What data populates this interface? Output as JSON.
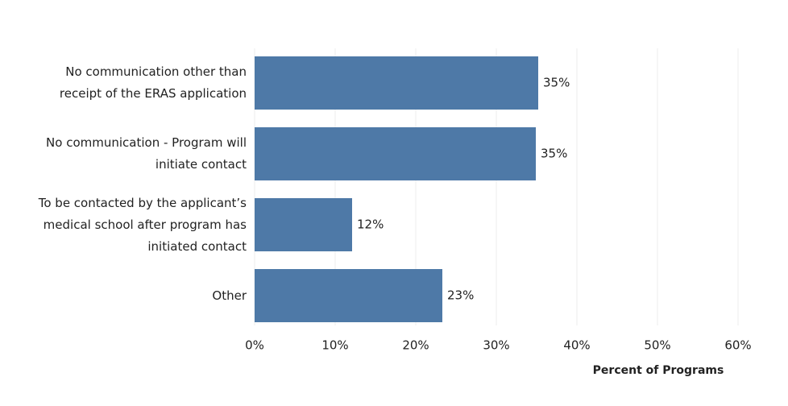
{
  "chart_data": {
    "type": "bar",
    "orientation": "horizontal",
    "categories": [
      "No communication other than\nreceipt of the ERAS application",
      "No communication - Program will\ninitiate contact",
      "To be contacted by the applicant’s\nmedical school after program has\ninitiated contact",
      "Other"
    ],
    "values": [
      35.2,
      34.9,
      12.1,
      23.3
    ],
    "value_labels": [
      "35%",
      "35%",
      "12%",
      "23%"
    ],
    "color": "#4e79a7",
    "xlim": [
      0,
      63
    ],
    "xticks": [
      {
        "value": 0,
        "label": "0%"
      },
      {
        "value": 10,
        "label": "10%"
      },
      {
        "value": 20,
        "label": "20%"
      },
      {
        "value": 30,
        "label": "30%"
      },
      {
        "value": 40,
        "label": "40%"
      },
      {
        "value": 50,
        "label": "50%"
      },
      {
        "value": 60,
        "label": "60%"
      }
    ],
    "x_label": "Percent of Programs",
    "grid": true
  }
}
